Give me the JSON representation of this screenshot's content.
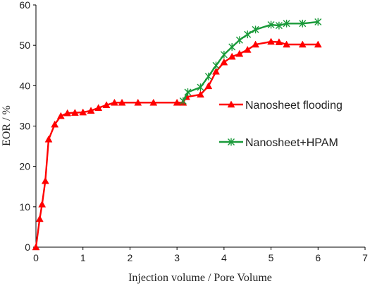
{
  "chart_data": {
    "type": "line",
    "xlabel": "Injection volume / Pore Volume",
    "ylabel": "EOR / %",
    "xlim": [
      0,
      7
    ],
    "ylim": [
      0,
      60
    ],
    "xticks": [
      0,
      1,
      2,
      3,
      4,
      5,
      6,
      7
    ],
    "yticks": [
      0,
      10,
      20,
      30,
      40,
      50,
      60
    ],
    "xtick_labels": [
      "0",
      "1",
      "2",
      "3",
      "4",
      "5",
      "6",
      "7"
    ],
    "ytick_labels": [
      "0",
      "10",
      "20",
      "30",
      "40",
      "50",
      "60"
    ],
    "grid": false,
    "legend_position": "right, inside plot",
    "series": [
      {
        "name": "Nanosheet flooding",
        "color": "#ff0000",
        "marker": "triangle",
        "points": [
          [
            0.0,
            0.0
          ],
          [
            0.08,
            7.0
          ],
          [
            0.13,
            10.6
          ],
          [
            0.2,
            16.4
          ],
          [
            0.27,
            26.7
          ],
          [
            0.4,
            30.4
          ],
          [
            0.53,
            32.5
          ],
          [
            0.67,
            33.2
          ],
          [
            0.83,
            33.3
          ],
          [
            1.0,
            33.4
          ],
          [
            1.17,
            33.8
          ],
          [
            1.33,
            34.5
          ],
          [
            1.5,
            35.2
          ],
          [
            1.67,
            35.8
          ],
          [
            1.83,
            35.8
          ],
          [
            2.17,
            35.8
          ],
          [
            2.5,
            35.8
          ],
          [
            3.0,
            35.8
          ],
          [
            3.13,
            35.8
          ],
          [
            3.2,
            37.2
          ],
          [
            3.5,
            37.8
          ],
          [
            3.67,
            39.9
          ],
          [
            3.83,
            43.5
          ],
          [
            4.0,
            45.8
          ],
          [
            4.17,
            47.2
          ],
          [
            4.33,
            47.9
          ],
          [
            4.5,
            48.9
          ],
          [
            4.67,
            50.2
          ],
          [
            5.0,
            50.9
          ],
          [
            5.17,
            50.8
          ],
          [
            5.33,
            50.2
          ],
          [
            5.67,
            50.2
          ],
          [
            6.0,
            50.2
          ]
        ]
      },
      {
        "name": "Nanosheet+HPAM",
        "color": "#1a9a3a",
        "marker": "asterisk",
        "points": [
          [
            3.13,
            36.2
          ],
          [
            3.23,
            38.4
          ],
          [
            3.5,
            39.6
          ],
          [
            3.67,
            42.3
          ],
          [
            3.83,
            45.0
          ],
          [
            4.0,
            47.7
          ],
          [
            4.17,
            49.6
          ],
          [
            4.33,
            51.3
          ],
          [
            4.5,
            52.7
          ],
          [
            4.67,
            53.9
          ],
          [
            5.0,
            55.1
          ],
          [
            5.17,
            54.9
          ],
          [
            5.33,
            55.4
          ],
          [
            5.67,
            55.4
          ],
          [
            6.0,
            55.8
          ]
        ]
      }
    ]
  }
}
